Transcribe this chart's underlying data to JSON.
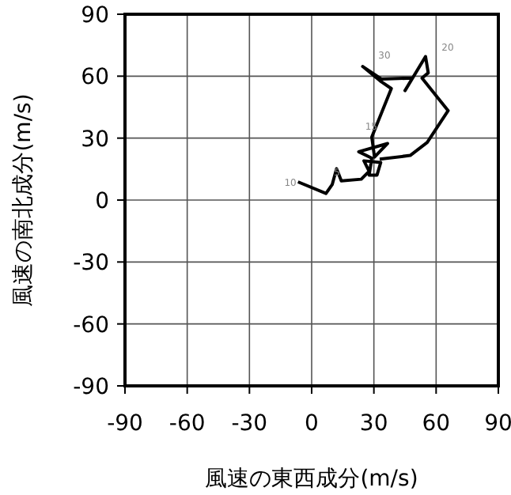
{
  "chart_data": {
    "type": "line",
    "xlabel": "風速の東西成分(m/s)",
    "ylabel": "風速の南北成分(m/s)",
    "xlim": [
      -90,
      90
    ],
    "ylim": [
      -90,
      90
    ],
    "xticks": [
      -90,
      -60,
      -30,
      0,
      30,
      60,
      90
    ],
    "yticks": [
      -90,
      -60,
      -30,
      0,
      30,
      60,
      90
    ],
    "grid": true,
    "marker": "none",
    "line_style": "solid",
    "series": [
      {
        "color": "#000000",
        "x": [
          -6.6,
          6.9,
          9.9,
          12.0,
          14.3,
          23.9,
          27.7,
          25.2,
          33.3,
          31.5,
          27.7,
          29.0,
          22.7,
          36.6,
          30.3,
          29.0,
          38.4,
          33.6,
          24.6,
          33.6,
          48.6,
          45.0,
          54.9,
          56.2,
          53.2,
          65.8,
          55.7,
          47.5,
          32.8
        ],
        "values": [
          8.8,
          3.2,
          7.5,
          15.2,
          9.3,
          10.1,
          13.9,
          19.0,
          18.2,
          12.1,
          12.1,
          20.3,
          23.4,
          27.4,
          20.8,
          30.5,
          54.0,
          57.3,
          64.7,
          58.6,
          59.1,
          53.0,
          69.5,
          61.6,
          59.1,
          43.3,
          27.9,
          21.6,
          19.8
        ]
      }
    ],
    "annotations": [
      {
        "text": "10",
        "x": -8,
        "y": 7
      },
      {
        "text": "5",
        "x": 14.5,
        "y": 12
      },
      {
        "text": "15",
        "x": 31,
        "y": 34
      },
      "30",
      "20"
    ]
  }
}
